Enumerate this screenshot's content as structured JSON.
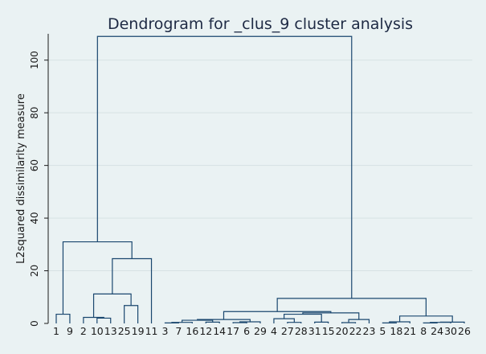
{
  "chart_data": {
    "type": "dendrogram",
    "title": "Dendrogram for _clus_9 cluster analysis",
    "ylabel": "L2squared dissimilarity measure",
    "xlabel": "",
    "ylim": [
      0,
      110
    ],
    "yticks": [
      0,
      20,
      40,
      60,
      80,
      100
    ],
    "grid": true,
    "leaves": [
      "1",
      "9",
      "2",
      "10",
      "13",
      "25",
      "19",
      "11",
      "3",
      "7",
      "16",
      "12",
      "14",
      "17",
      "6",
      "29",
      "4",
      "27",
      "28",
      "31",
      "15",
      "20",
      "22",
      "23",
      "5",
      "18",
      "21",
      "8",
      "24",
      "30",
      "26"
    ],
    "merges": [
      {
        "left": "L0",
        "right": "L1",
        "height": 3.5
      },
      {
        "left": "L3",
        "right": "L4",
        "height": 2
      },
      {
        "left": "L5",
        "right": "L6",
        "height": 6.8
      },
      {
        "left": "L2",
        "right": "M1",
        "height": 2.3
      },
      {
        "left": "M3",
        "right": "M2",
        "height": 11.2
      },
      {
        "left": "M4",
        "right": "L7",
        "height": 24.6
      },
      {
        "left": "M0",
        "right": "M5",
        "height": 31
      },
      {
        "left": "L8",
        "right": "L9",
        "height": 0.2
      },
      {
        "left": "M7",
        "right": "L10",
        "height": 0.4
      },
      {
        "left": "L11",
        "right": "L12",
        "height": 0.5
      },
      {
        "left": "M8",
        "right": "M9",
        "height": 1.2
      },
      {
        "left": "L13",
        "right": "L14",
        "height": 0.3
      },
      {
        "left": "M11",
        "right": "L15",
        "height": 0.6
      },
      {
        "left": "M10",
        "right": "M12",
        "height": 1.5
      },
      {
        "left": "L17",
        "right": "L18",
        "height": 0.4
      },
      {
        "left": "L16",
        "right": "M14",
        "height": 1.8
      },
      {
        "left": "L19",
        "right": "L20",
        "height": 0.5
      },
      {
        "left": "M15",
        "right": "M16",
        "height": 3.5
      },
      {
        "left": "L21",
        "right": "L22",
        "height": 0.3
      },
      {
        "left": "M18",
        "right": "L23",
        "height": 1.5
      },
      {
        "left": "M17",
        "right": "M19",
        "height": 4
      },
      {
        "left": "M13",
        "right": "M20",
        "height": 4.5
      },
      {
        "left": "L24",
        "right": "L25",
        "height": 0.2
      },
      {
        "left": "M22",
        "right": "L26",
        "height": 0.6
      },
      {
        "left": "L27",
        "right": "L28",
        "height": 0.2
      },
      {
        "left": "M24",
        "right": "L29",
        "height": 0.4
      },
      {
        "left": "M25",
        "right": "L30",
        "height": 0.5
      },
      {
        "left": "M23",
        "right": "M26",
        "height": 2.8
      },
      {
        "left": "M21",
        "right": "M27",
        "height": 9.5
      },
      {
        "left": "M6",
        "right": "M28",
        "height": 109
      }
    ]
  },
  "colors": {
    "background": "#eaf2f3",
    "link": "#1a476f",
    "title": "#1e2a44"
  }
}
